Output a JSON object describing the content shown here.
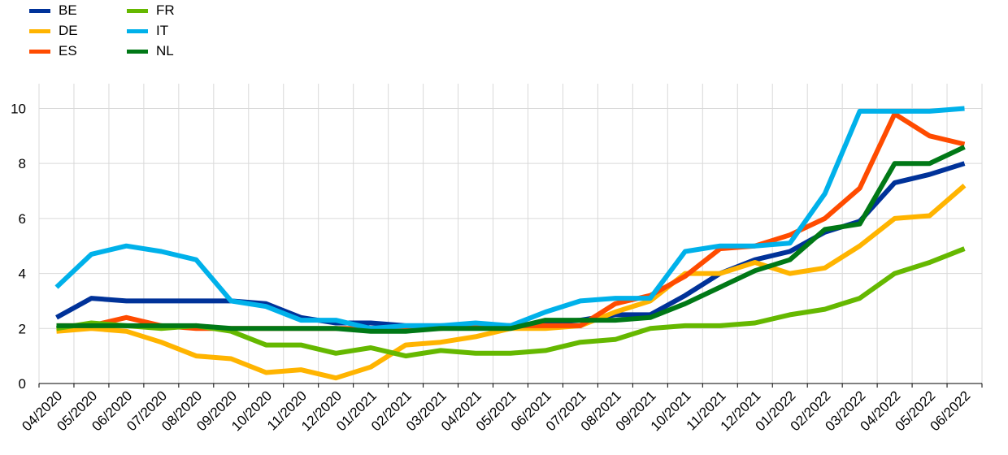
{
  "chart_data": {
    "type": "line",
    "title": "",
    "xlabel": "",
    "ylabel": "",
    "ylim": [
      0,
      10.9
    ],
    "yticks": [
      0,
      2,
      4,
      6,
      8,
      10
    ],
    "grid": true,
    "legend_position": "top-left",
    "categories": [
      "04/2020",
      "05/2020",
      "06/2020",
      "07/2020",
      "08/2020",
      "09/2020",
      "10/2020",
      "11/2020",
      "12/2020",
      "01/2021",
      "02/2021",
      "03/2021",
      "04/2021",
      "05/2021",
      "06/2021",
      "07/2021",
      "08/2021",
      "09/2021",
      "10/2021",
      "11/2021",
      "12/2021",
      "01/2022",
      "02/2022",
      "03/2022",
      "04/2022",
      "05/2022",
      "06/2022"
    ],
    "series": [
      {
        "name": "BE",
        "color": "#003299",
        "values": [
          2.4,
          3.1,
          3.0,
          3.0,
          3.0,
          3.0,
          2.9,
          2.4,
          2.2,
          2.2,
          2.1,
          2.1,
          2.1,
          2.1,
          2.2,
          2.3,
          2.5,
          2.5,
          3.2,
          4.0,
          4.5,
          4.8,
          5.5,
          5.9,
          7.3,
          7.6,
          8.0
        ]
      },
      {
        "name": "DE",
        "color": "#FFB400",
        "values": [
          1.9,
          2.0,
          1.9,
          1.5,
          1.0,
          0.9,
          0.4,
          0.5,
          0.2,
          0.6,
          1.4,
          1.5,
          1.7,
          2.0,
          2.0,
          2.1,
          2.6,
          3.0,
          4.0,
          4.0,
          4.4,
          4.0,
          4.2,
          5.0,
          6.0,
          6.1,
          7.2
        ]
      },
      {
        "name": "ES",
        "color": "#FF4B00",
        "values": [
          2.1,
          2.1,
          2.4,
          2.1,
          2.0,
          2.0,
          2.0,
          2.0,
          2.0,
          2.0,
          2.0,
          2.0,
          2.1,
          2.1,
          2.1,
          2.1,
          2.9,
          3.2,
          3.9,
          4.9,
          5.0,
          5.4,
          6.0,
          7.1,
          9.8,
          9.0,
          8.7
        ]
      },
      {
        "name": "FR",
        "color": "#65B800",
        "values": [
          2.0,
          2.2,
          2.1,
          2.0,
          2.1,
          1.9,
          1.4,
          1.4,
          1.1,
          1.3,
          1.0,
          1.2,
          1.1,
          1.1,
          1.2,
          1.5,
          1.6,
          2.0,
          2.1,
          2.1,
          2.2,
          2.5,
          2.7,
          3.1,
          4.0,
          4.4,
          4.9
        ]
      },
      {
        "name": "IT",
        "color": "#00B1EA",
        "values": [
          3.5,
          4.7,
          5.0,
          4.8,
          4.5,
          3.0,
          2.8,
          2.3,
          2.3,
          2.0,
          2.1,
          2.1,
          2.2,
          2.1,
          2.6,
          3.0,
          3.1,
          3.1,
          4.8,
          5.0,
          5.0,
          5.1,
          6.9,
          9.9,
          9.9,
          9.9,
          10.0
        ]
      },
      {
        "name": "NL",
        "color": "#007816",
        "values": [
          2.1,
          2.1,
          2.1,
          2.1,
          2.1,
          2.0,
          2.0,
          2.0,
          2.0,
          1.9,
          1.9,
          2.0,
          2.0,
          2.0,
          2.3,
          2.3,
          2.3,
          2.4,
          2.9,
          3.5,
          4.1,
          4.5,
          5.6,
          5.8,
          8.0,
          8.0,
          8.6
        ]
      }
    ]
  }
}
